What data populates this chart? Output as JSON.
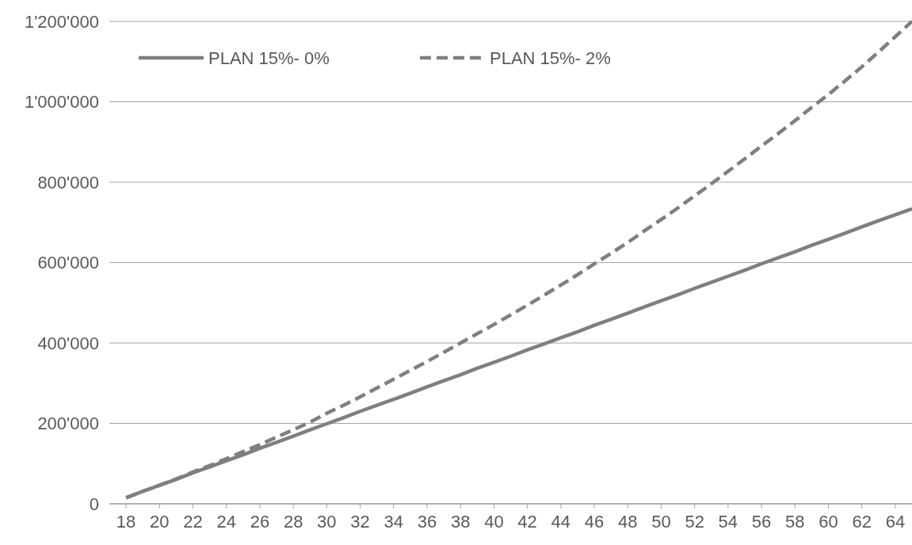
{
  "chart_data": {
    "type": "line",
    "x": [
      18,
      19,
      20,
      21,
      22,
      23,
      24,
      25,
      26,
      27,
      28,
      29,
      30,
      31,
      32,
      33,
      34,
      35,
      36,
      37,
      38,
      39,
      40,
      41,
      42,
      43,
      44,
      45,
      46,
      47,
      48,
      49,
      50,
      51,
      52,
      53,
      54,
      55,
      56,
      57,
      58,
      59,
      60,
      61,
      62,
      63,
      64,
      65
    ],
    "series": [
      {
        "name": "PLAN 15%- 0%",
        "color": "#7f7f7f",
        "line_style": "solid",
        "values": [
          15000,
          31000,
          46000,
          61000,
          77000,
          92000,
          107000,
          122000,
          138000,
          153000,
          168000,
          184000,
          199000,
          214000,
          230000,
          245000,
          260000,
          275000,
          291000,
          306000,
          321000,
          337000,
          352000,
          367000,
          383000,
          398000,
          413000,
          428000,
          444000,
          459000,
          474000,
          490000,
          505000,
          520000,
          536000,
          551000,
          566000,
          581000,
          597000,
          612000,
          627000,
          643000,
          658000,
          673000,
          689000,
          704000,
          719000,
          734000
        ]
      },
      {
        "name": "PLAN 15%- 2%",
        "color": "#7f7f7f",
        "line_style": "dashed",
        "values": [
          15000,
          31000,
          46000,
          62000,
          79000,
          95000,
          112000,
          130000,
          147000,
          166000,
          184000,
          203000,
          225000,
          245000,
          266000,
          288000,
          310000,
          332000,
          354000,
          377000,
          400000,
          423000,
          446000,
          470000,
          494000,
          519000,
          544000,
          570000,
          597000,
          623000,
          650000,
          679000,
          707000,
          736000,
          766000,
          796000,
          827000,
          858000,
          890000,
          921000,
          953000,
          986000,
          1018000,
          1052000,
          1087000,
          1124000,
          1162000,
          1200000
        ]
      }
    ],
    "xlim": [
      17,
      65
    ],
    "xticks": [
      18,
      20,
      22,
      24,
      26,
      28,
      30,
      32,
      34,
      36,
      38,
      40,
      42,
      44,
      46,
      48,
      50,
      52,
      54,
      56,
      58,
      60,
      62,
      64
    ],
    "ylim": [
      0,
      1200000
    ],
    "yticks": [
      0,
      {
        "value": 200000,
        "label": "200'000"
      },
      {
        "value": 400000,
        "label": "400'000"
      },
      {
        "value": 600000,
        "label": "600'000"
      },
      {
        "value": 800000,
        "label": "800'000"
      },
      {
        "value": 1000000,
        "label": "1'000'000"
      },
      {
        "value": 1200000,
        "label": "1'200'000"
      }
    ],
    "grid": "y",
    "legend": "top left"
  }
}
